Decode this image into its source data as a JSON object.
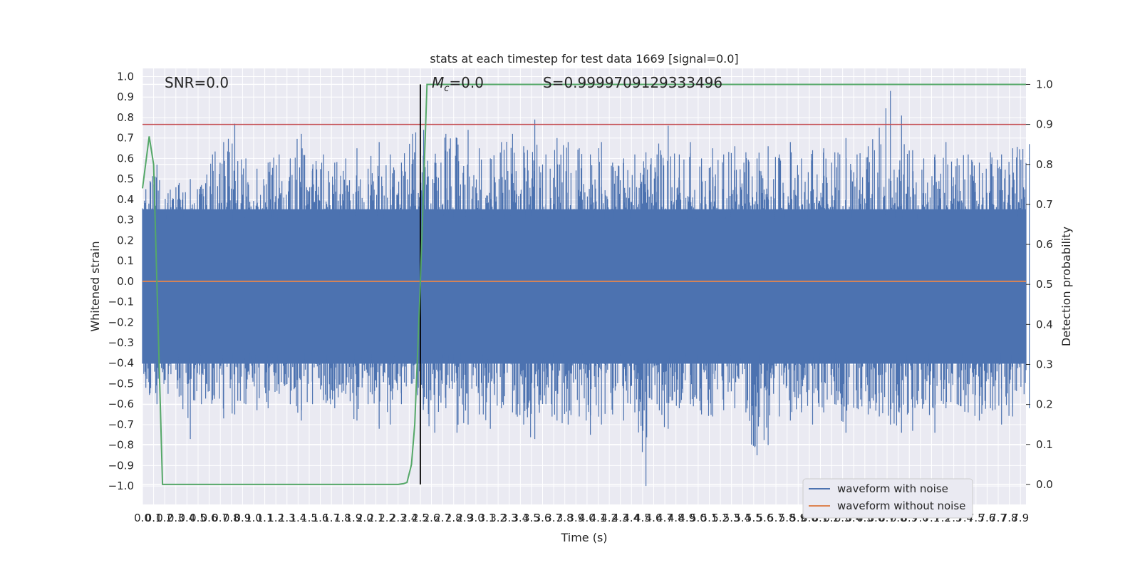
{
  "chart_data": {
    "type": "line",
    "title": "stats at each timestep for test data 1669 [signal=0.0]",
    "xlabel": "Time (s)",
    "ylabel": "Whitened strain",
    "y2label": "Detection probability",
    "xlim": [
      0.0,
      7.95
    ],
    "ylim": [
      -1.09,
      1.04
    ],
    "y2lim": [
      -0.05,
      1.04
    ],
    "x_ticks": [
      "0.0",
      "0.1",
      "0.2",
      "0.3",
      "0.4",
      "0.5",
      "0.6",
      "0.7",
      "0.8",
      "0.9",
      "1.0",
      "1.1",
      "1.2",
      "1.3",
      "1.4",
      "1.5",
      "1.6",
      "1.7",
      "1.8",
      "1.9",
      "2.0",
      "2.1",
      "2.2",
      "2.3",
      "2.4",
      "2.5",
      "2.6",
      "2.7",
      "2.8",
      "2.9",
      "3.0",
      "3.1",
      "3.2",
      "3.3",
      "3.4",
      "3.5",
      "3.6",
      "3.7",
      "3.8",
      "3.9",
      "4.0",
      "4.1",
      "4.2",
      "4.3",
      "4.4",
      "4.5",
      "4.6",
      "4.7",
      "4.8",
      "4.9",
      "5.0",
      "5.1",
      "5.2",
      "5.3",
      "5.4",
      "5.5",
      "5.6",
      "5.7",
      "5.8",
      "5.9",
      "6.0",
      "6.1",
      "6.2",
      "6.3",
      "6.4",
      "6.5",
      "6.6",
      "6.7",
      "6.8",
      "6.9",
      "7.0",
      "7.1",
      "7.2",
      "7.3",
      "7.4",
      "7.5",
      "7.6",
      "7.7",
      "7.8",
      "7.9"
    ],
    "y_ticks": [
      "1.0",
      "0.9",
      "0.8",
      "0.7",
      "0.6",
      "0.5",
      "0.4",
      "0.3",
      "0.2",
      "0.1",
      "0.0",
      "−0.1",
      "−0.2",
      "−0.3",
      "−0.4",
      "−0.5",
      "−0.6",
      "−0.7",
      "−0.8",
      "−0.9",
      "−1.0"
    ],
    "y2_ticks": [
      "1.0",
      "0.9",
      "0.8",
      "0.7",
      "0.6",
      "0.5",
      "0.4",
      "0.3",
      "0.2",
      "0.1",
      "0.0"
    ],
    "annotations": {
      "snr": "SNR=0.0",
      "mc_symbol": "M",
      "mc_sub": "c",
      "mc_value": "=0.0",
      "score": "S=0.9999709129333496"
    },
    "series": [
      {
        "name": "waveform with noise",
        "color": "#4c72b0",
        "envelope_x": [
          0.0,
          0.1,
          0.2,
          0.3,
          0.4,
          0.5,
          0.6,
          0.7,
          0.8,
          0.9,
          1.0,
          1.1,
          1.2,
          1.3,
          1.4,
          1.5,
          1.6,
          1.7,
          1.8,
          1.9,
          2.0,
          2.1,
          2.2,
          2.3,
          2.4,
          2.5,
          2.6,
          2.7,
          2.8,
          2.9,
          3.0,
          3.1,
          3.2,
          3.3,
          3.4,
          3.5,
          3.6,
          3.7,
          3.8,
          3.9,
          4.0,
          4.1,
          4.2,
          4.3,
          4.4,
          4.5,
          4.6,
          4.7,
          4.8,
          4.9,
          5.0,
          5.1,
          5.2,
          5.3,
          5.4,
          5.5,
          5.6,
          5.7,
          5.8,
          5.9,
          6.0,
          6.1,
          6.2,
          6.3,
          6.4,
          6.5,
          6.6,
          6.7,
          6.8,
          6.9,
          7.0,
          7.1,
          7.2,
          7.3,
          7.4,
          7.5,
          7.6,
          7.7,
          7.8,
          7.95
        ],
        "envelope_max": [
          0.45,
          0.57,
          0.43,
          0.48,
          0.5,
          0.47,
          0.62,
          0.68,
          0.77,
          0.6,
          0.55,
          0.58,
          0.62,
          0.6,
          0.72,
          0.55,
          0.62,
          0.58,
          0.6,
          0.65,
          0.55,
          0.68,
          0.62,
          0.58,
          0.72,
          0.74,
          0.58,
          0.72,
          0.7,
          0.74,
          0.65,
          0.6,
          0.68,
          0.72,
          0.66,
          0.79,
          0.62,
          0.7,
          0.68,
          0.65,
          0.62,
          0.68,
          0.58,
          0.6,
          0.62,
          0.63,
          0.62,
          0.76,
          0.62,
          0.68,
          0.6,
          0.65,
          0.62,
          0.66,
          0.63,
          0.6,
          0.66,
          0.62,
          0.68,
          0.6,
          0.64,
          0.65,
          0.63,
          0.7,
          0.62,
          0.66,
          0.75,
          0.93,
          0.81,
          0.64,
          0.6,
          0.62,
          0.68,
          0.6,
          0.62,
          0.58,
          0.63,
          0.62,
          0.65,
          0.67
        ],
        "envelope_min": [
          -0.52,
          -0.6,
          -0.55,
          -0.5,
          -0.77,
          -0.6,
          -0.58,
          -0.67,
          -0.65,
          -0.6,
          -0.63,
          -0.62,
          -0.55,
          -0.6,
          -0.68,
          -0.6,
          -0.58,
          -0.62,
          -0.55,
          -0.68,
          -0.6,
          -0.72,
          -0.7,
          -0.6,
          -0.5,
          -0.6,
          -0.74,
          -0.62,
          -0.74,
          -0.7,
          -0.65,
          -0.72,
          -0.62,
          -0.64,
          -0.7,
          -0.77,
          -0.6,
          -0.68,
          -0.7,
          -0.66,
          -0.75,
          -0.7,
          -0.65,
          -0.68,
          -0.64,
          -1.0,
          -0.6,
          -0.72,
          -0.62,
          -0.6,
          -0.65,
          -0.66,
          -0.63,
          -0.62,
          -0.64,
          -0.85,
          -0.8,
          -0.66,
          -0.68,
          -0.62,
          -0.7,
          -0.64,
          -0.6,
          -0.74,
          -0.62,
          -0.65,
          -0.66,
          -0.7,
          -0.74,
          -0.73,
          -0.6,
          -0.74,
          -0.62,
          -0.6,
          -0.64,
          -0.68,
          -0.62,
          -0.7,
          -0.66,
          -0.62
        ]
      },
      {
        "name": "waveform without noise",
        "color": "#dd8452",
        "x": [
          0.0,
          7.95
        ],
        "values": [
          0.0,
          0.0
        ]
      },
      {
        "color": "#55a868",
        "axis": "right",
        "x": [
          0.0,
          0.06,
          0.1,
          0.15,
          0.18,
          0.3,
          0.5,
          1.0,
          1.5,
          2.0,
          2.3,
          2.35,
          2.38,
          2.42,
          2.45,
          2.5,
          2.56,
          3.0,
          4.0,
          5.0,
          6.0,
          7.0,
          7.95
        ],
        "values": [
          0.74,
          0.87,
          0.8,
          0.3,
          0.0,
          0.0,
          0.0,
          0.0,
          0.0,
          0.0,
          0.0,
          0.002,
          0.005,
          0.05,
          0.15,
          0.5,
          1.0,
          1.0,
          1.0,
          1.0,
          1.0,
          1.0,
          1.0
        ]
      }
    ],
    "hlines": [
      {
        "axis": "right",
        "y": 0.9,
        "color": "#c44e52"
      }
    ],
    "vlines": [
      {
        "x": 2.5,
        "ymin_axis2": 0.0,
        "ymax_axis2": 1.0,
        "color": "#000000"
      }
    ],
    "legend": {
      "placement": "lower right",
      "entries": [
        "waveform with noise",
        "waveform without noise"
      ]
    },
    "grid": true,
    "background": "#eaeaf2"
  }
}
